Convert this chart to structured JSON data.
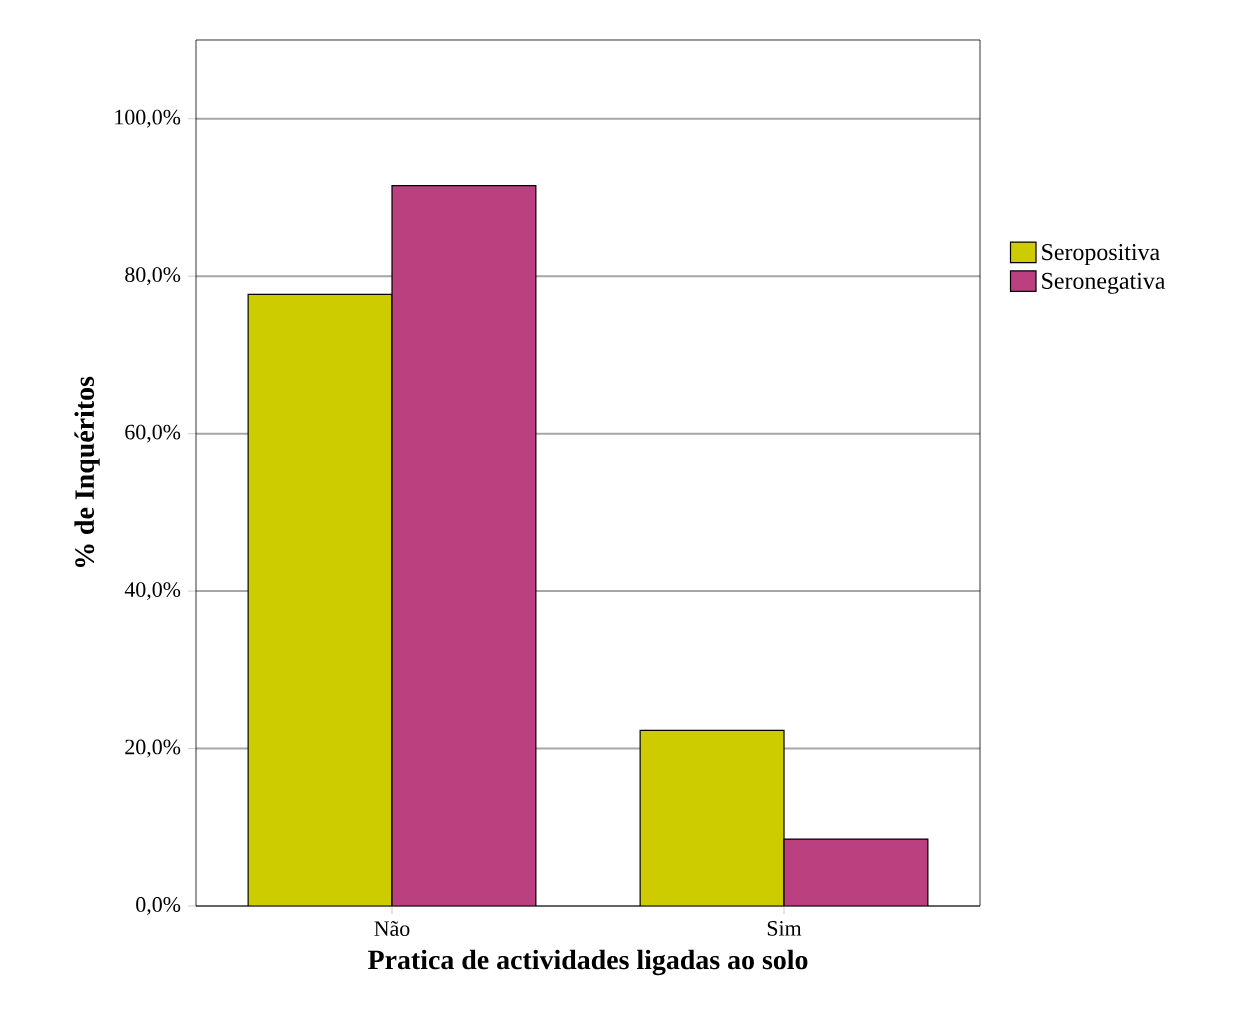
{
  "chart_data": {
    "type": "bar",
    "xlabel": "Pratica de actividades ligadas ao solo",
    "ylabel": "% de Inquéritos",
    "categories": [
      "Não",
      "Sim"
    ],
    "series": [
      {
        "name": "Seropositiva",
        "color": "#cccc00",
        "values": [
          77.7,
          22.3
        ]
      },
      {
        "name": "Seronegativa",
        "color": "#bb4080",
        "values": [
          91.5,
          8.5
        ]
      }
    ],
    "ylim": [
      0,
      110
    ],
    "yticks": [
      {
        "value": 0,
        "label": "0,0%"
      },
      {
        "value": 20,
        "label": "20,0%"
      },
      {
        "value": 40,
        "label": "40,0%"
      },
      {
        "value": 60,
        "label": "60,0%"
      },
      {
        "value": 80,
        "label": "80,0%"
      },
      {
        "value": 100,
        "label": "100,0%"
      }
    ],
    "grid": "y",
    "legend": "right"
  }
}
